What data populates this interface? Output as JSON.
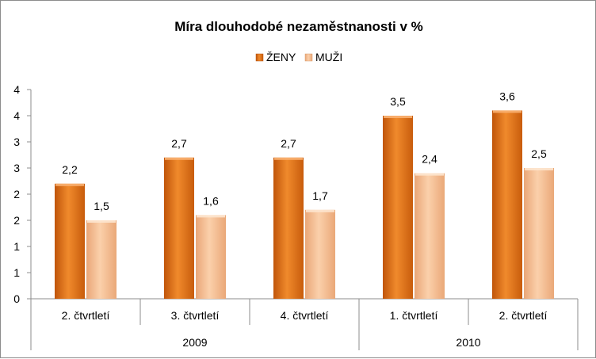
{
  "chart_data": {
    "type": "bar",
    "title": "Míra dlouhodobé nezaměstnanosti v %",
    "legend_position": "top",
    "grid": false,
    "y_ticks": [
      "0",
      "1",
      "1",
      "2",
      "2",
      "3",
      "3",
      "4",
      "4"
    ],
    "ylim": [
      0,
      4
    ],
    "categories": [
      "2. čtvrtletí",
      "3. čtvrtletí",
      "4. čtvrtletí",
      "1. čtvrtletí",
      "2. čtvrtletí"
    ],
    "groups": [
      {
        "label": "2009",
        "span": 3
      },
      {
        "label": "2010",
        "span": 2
      }
    ],
    "series": [
      {
        "name": "ŽENY",
        "values": [
          2.2,
          2.7,
          2.7,
          3.5,
          3.6
        ],
        "labels": [
          "2,2",
          "2,7",
          "2,7",
          "3,5",
          "3,6"
        ],
        "color": "#e46c0a",
        "color_light": "#f7a55a"
      },
      {
        "name": "MUŽI",
        "values": [
          1.5,
          1.6,
          1.7,
          2.4,
          2.5
        ],
        "labels": [
          "1,5",
          "1,6",
          "1,7",
          "2,4",
          "2,5"
        ],
        "color": "#f6b889",
        "color_light": "#fcdcc0"
      }
    ]
  }
}
